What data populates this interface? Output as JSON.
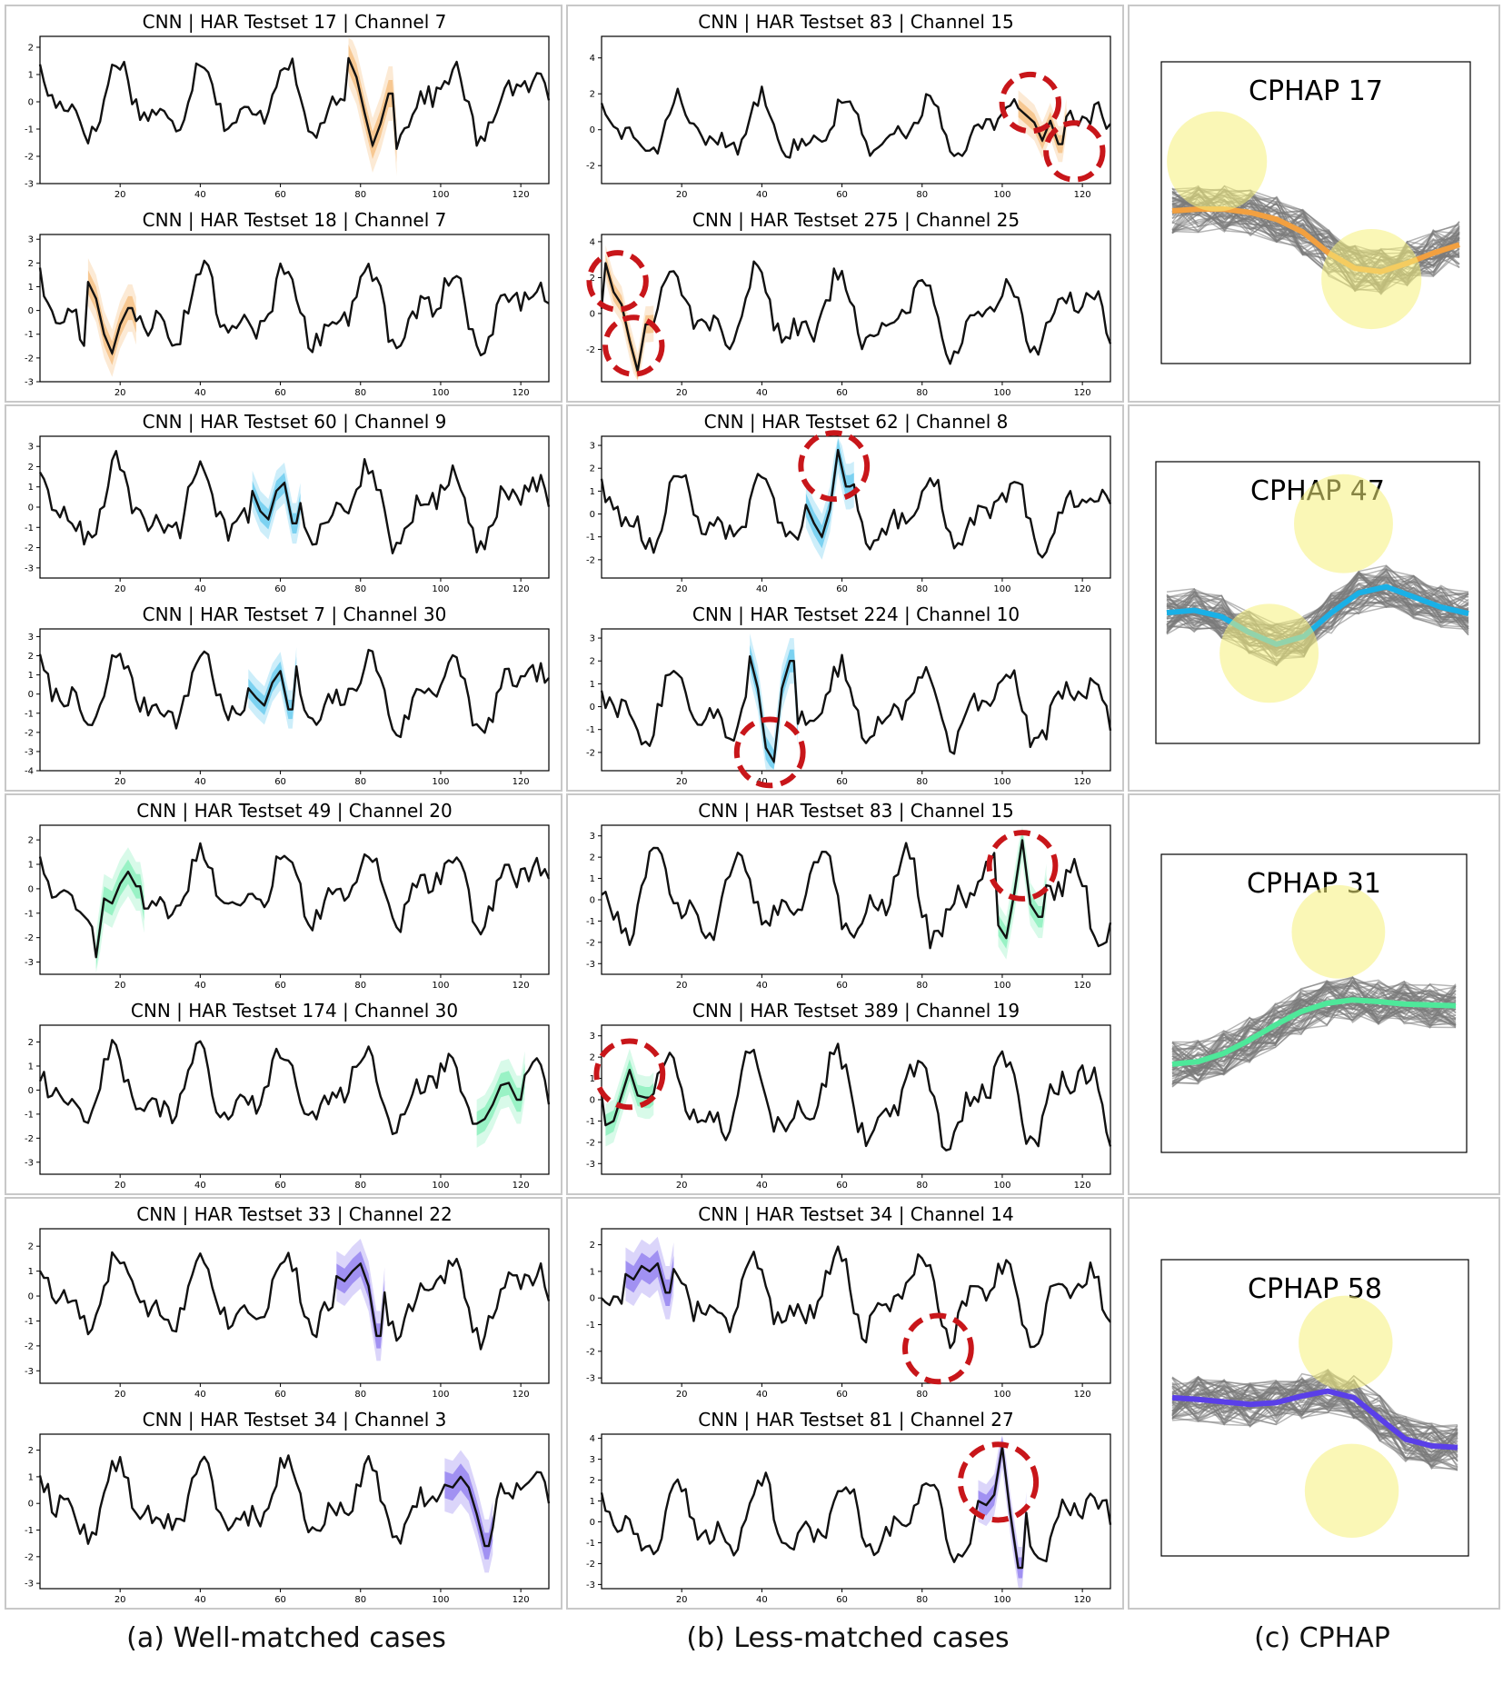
{
  "captions": {
    "a": "(a) Well-matched cases",
    "b": "(b) Less-matched cases",
    "c": "(c) CPHAP"
  },
  "colors": {
    "orange": "#f2a040",
    "cyan": "#1ab0e6",
    "green": "#4ee89a",
    "purple": "#5a3fe8",
    "highlight_circle": "#f5f07a",
    "red_marker": "#c8161a"
  },
  "chart_data": [
    {
      "type": "line",
      "title": "CNN | HAR Testset 17 | Channel 7",
      "column": "a",
      "row": 1,
      "color": "orange",
      "yticks": [
        -3,
        -2,
        -1,
        0,
        1,
        2
      ],
      "xticks": [
        20,
        40,
        60,
        80,
        100,
        120
      ],
      "ylim": [
        -3,
        2.4
      ],
      "xlim": [
        0,
        127
      ],
      "seed": 17,
      "highlight_start": 77,
      "pattern": [
        1.6,
        0.9,
        -0.4,
        -1.6,
        -0.8,
        0.3
      ],
      "markers": []
    },
    {
      "type": "line",
      "title": "CNN | HAR Testset 18 | Channel 7",
      "column": "a",
      "row": 1,
      "color": "orange",
      "yticks": [
        -3,
        -2,
        -1,
        0,
        1,
        2,
        3
      ],
      "xticks": [
        20,
        40,
        60,
        80,
        100,
        120
      ],
      "ylim": [
        -3,
        3.2
      ],
      "xlim": [
        0,
        127
      ],
      "seed": 18,
      "highlight_start": 12,
      "pattern": [
        1.2,
        0.5,
        -1.0,
        -1.8,
        -0.6,
        0.1
      ],
      "markers": []
    },
    {
      "type": "line",
      "title": "CNN | HAR Testset 83 | Channel 15",
      "column": "b",
      "row": 1,
      "color": "orange",
      "yticks": [
        -2,
        0,
        2,
        4
      ],
      "xticks": [
        20,
        40,
        60,
        80,
        100,
        120
      ],
      "ylim": [
        -3,
        5.2
      ],
      "xlim": [
        0,
        127
      ],
      "seed": 83,
      "highlight_start": 104,
      "pattern": [
        1.2,
        0.8,
        0.4,
        -0.6,
        0.5,
        -0.8
      ],
      "markers": [
        [
          107,
          1.5,
          24
        ],
        [
          118,
          -1.2,
          24
        ]
      ]
    },
    {
      "type": "line",
      "title": "CNN | HAR Testset 275 | Channel 25",
      "column": "b",
      "row": 1,
      "color": "orange",
      "yticks": [
        -2,
        0,
        2,
        4
      ],
      "xticks": [
        20,
        40,
        60,
        80,
        100,
        120
      ],
      "ylim": [
        -3.8,
        4.4
      ],
      "xlim": [
        0,
        127
      ],
      "seed": 275,
      "highlight_start": 1,
      "pattern": [
        2.8,
        1.2,
        0.5,
        -1.5,
        -3.2,
        -0.6
      ],
      "markers": [
        [
          4,
          1.8,
          24
        ],
        [
          8,
          -1.8,
          24
        ]
      ]
    },
    {
      "type": "line",
      "title": "CNN | HAR Testset 60 | Channel 9",
      "column": "a",
      "row": 2,
      "color": "cyan",
      "yticks": [
        -3,
        -2,
        -1,
        0,
        1,
        2,
        3
      ],
      "xticks": [
        20,
        40,
        60,
        80,
        100,
        120
      ],
      "ylim": [
        -3.5,
        3.5
      ],
      "xlim": [
        0,
        127
      ],
      "seed": 60,
      "highlight_start": 53,
      "pattern": [
        0.8,
        -0.2,
        -0.6,
        0.8,
        1.2,
        -0.8
      ],
      "markers": []
    },
    {
      "type": "line",
      "title": "CNN | HAR Testset 7 | Channel 30",
      "column": "a",
      "row": 2,
      "color": "cyan",
      "yticks": [
        -4,
        -3,
        -2,
        -1,
        0,
        1,
        2,
        3
      ],
      "xticks": [
        20,
        40,
        60,
        80,
        100,
        120
      ],
      "ylim": [
        -4,
        3.4
      ],
      "xlim": [
        0,
        127
      ],
      "seed": 7,
      "highlight_start": 52,
      "pattern": [
        0.3,
        -0.2,
        -0.6,
        0.6,
        1.2,
        -0.8
      ],
      "markers": []
    },
    {
      "type": "line",
      "title": "CNN | HAR Testset 62 | Channel 8",
      "column": "b",
      "row": 2,
      "color": "cyan",
      "yticks": [
        -2,
        -1,
        0,
        1,
        2,
        3
      ],
      "xticks": [
        20,
        40,
        60,
        80,
        100,
        120
      ],
      "ylim": [
        -2.8,
        3.4
      ],
      "xlim": [
        0,
        127
      ],
      "seed": 62,
      "highlight_start": 51,
      "pattern": [
        0.4,
        -0.4,
        -1.0,
        0.2,
        2.8,
        1.2
      ],
      "markers": [
        [
          58,
          2.1,
          28
        ]
      ]
    },
    {
      "type": "line",
      "title": "CNN | HAR Testset 224 | Channel 10",
      "column": "b",
      "row": 2,
      "color": "cyan",
      "yticks": [
        -2,
        -1,
        0,
        1,
        2,
        3
      ],
      "xticks": [
        20,
        40,
        60,
        80,
        100,
        120
      ],
      "ylim": [
        -2.8,
        3.4
      ],
      "xlim": [
        0,
        127
      ],
      "seed": 224,
      "highlight_start": 37,
      "pattern": [
        2.2,
        0.8,
        -1.8,
        -2.4,
        0.8,
        2.0
      ],
      "markers": [
        [
          42,
          -2.0,
          28
        ]
      ]
    },
    {
      "type": "line",
      "title": "CNN | HAR Testset 49 | Channel 20",
      "column": "a",
      "row": 3,
      "color": "green",
      "yticks": [
        -3,
        -2,
        -1,
        0,
        1,
        2
      ],
      "xticks": [
        20,
        40,
        60,
        80,
        100,
        120
      ],
      "ylim": [
        -3.5,
        2.6
      ],
      "xlim": [
        0,
        127
      ],
      "seed": 49,
      "highlight_start": 14,
      "pattern": [
        -2.8,
        -0.4,
        -0.6,
        0.2,
        0.7,
        0.1
      ],
      "markers": []
    },
    {
      "type": "line",
      "title": "CNN | HAR Testset 174 | Channel 30",
      "column": "a",
      "row": 3,
      "color": "green",
      "yticks": [
        -3,
        -2,
        -1,
        0,
        1,
        2
      ],
      "xticks": [
        20,
        40,
        60,
        80,
        100,
        120
      ],
      "ylim": [
        -3.5,
        2.7
      ],
      "xlim": [
        0,
        127
      ],
      "seed": 174,
      "highlight_start": 109,
      "pattern": [
        -1.4,
        -1.2,
        -0.6,
        0.2,
        0.3,
        -0.4
      ],
      "markers": []
    },
    {
      "type": "line",
      "title": "CNN | HAR Testset 83 | Channel 15",
      "column": "b",
      "row": 3,
      "color": "green",
      "yticks": [
        -3,
        -2,
        -1,
        0,
        1,
        2,
        3
      ],
      "xticks": [
        20,
        40,
        60,
        80,
        100,
        120
      ],
      "ylim": [
        -3.5,
        3.5
      ],
      "xlim": [
        0,
        127
      ],
      "seed": 831,
      "highlight_start": 99,
      "pattern": [
        -1.2,
        -1.8,
        0.3,
        2.8,
        -0.2,
        -0.8
      ],
      "markers": [
        [
          105,
          1.6,
          28
        ]
      ]
    },
    {
      "type": "line",
      "title": "CNN | HAR Testset 389 | Channel 19",
      "column": "b",
      "row": 3,
      "color": "green",
      "yticks": [
        -3,
        -2,
        -1,
        0,
        1,
        2,
        3
      ],
      "xticks": [
        20,
        40,
        60,
        80,
        100,
        120
      ],
      "ylim": [
        -3.5,
        3.5
      ],
      "xlim": [
        0,
        127
      ],
      "seed": 389,
      "highlight_start": 1,
      "pattern": [
        -1.2,
        -1.0,
        0.2,
        1.4,
        0.2,
        0.1
      ],
      "markers": [
        [
          7,
          1.2,
          28
        ]
      ]
    },
    {
      "type": "line",
      "title": "CNN | HAR Testset 33 | Channel 22",
      "column": "a",
      "row": 4,
      "color": "purple",
      "yticks": [
        -3,
        -2,
        -1,
        0,
        1,
        2
      ],
      "xticks": [
        20,
        40,
        60,
        80,
        100,
        120
      ],
      "ylim": [
        -3.5,
        2.7
      ],
      "xlim": [
        0,
        127
      ],
      "seed": 33,
      "highlight_start": 74,
      "pattern": [
        0.8,
        0.6,
        1.0,
        1.3,
        0.4,
        -1.6
      ],
      "markers": []
    },
    {
      "type": "line",
      "title": "CNN | HAR Testset 34 | Channel 3",
      "column": "a",
      "row": 4,
      "color": "purple",
      "yticks": [
        -3,
        -2,
        -1,
        0,
        1,
        2
      ],
      "xticks": [
        20,
        40,
        60,
        80,
        100,
        120
      ],
      "ylim": [
        -3.2,
        2.6
      ],
      "xlim": [
        0,
        127
      ],
      "seed": 34,
      "highlight_start": 101,
      "pattern": [
        0.7,
        0.6,
        1.0,
        0.6,
        -0.4,
        -1.6
      ],
      "markers": []
    },
    {
      "type": "line",
      "title": "CNN | HAR Testset 34 | Channel 14",
      "column": "b",
      "row": 4,
      "color": "purple",
      "yticks": [
        -3,
        -2,
        -1,
        0,
        1,
        2
      ],
      "xticks": [
        20,
        40,
        60,
        80,
        100,
        120
      ],
      "ylim": [
        -3.2,
        2.6
      ],
      "xlim": [
        0,
        127
      ],
      "seed": 341,
      "highlight_start": 6,
      "pattern": [
        0.9,
        0.7,
        1.2,
        1.0,
        1.3,
        0.2
      ],
      "markers": [
        [
          84,
          -1.9,
          28
        ]
      ]
    },
    {
      "type": "line",
      "title": "CNN | HAR Testset 81 | Channel 27",
      "column": "b",
      "row": 4,
      "color": "purple",
      "yticks": [
        -3,
        -2,
        -1,
        0,
        1,
        2,
        3,
        4
      ],
      "xticks": [
        20,
        40,
        60,
        80,
        100,
        120
      ],
      "ylim": [
        -3.2,
        4.2
      ],
      "xlim": [
        0,
        127
      ],
      "seed": 81,
      "highlight_start": 94,
      "pattern": [
        1.0,
        0.8,
        1.3,
        3.6,
        0.4,
        -2.2
      ],
      "markers": [
        [
          99,
          1.9,
          32
        ]
      ]
    }
  ],
  "cphap": [
    {
      "title": "CPHAP 17",
      "color": "orange",
      "seed": 1701,
      "mean": [
        0.2,
        0.22,
        0.22,
        0.18,
        0.1,
        -0.05,
        -0.3,
        -0.48,
        -0.52,
        -0.42,
        -0.3,
        -0.2
      ],
      "circles": [
        [
          0.18,
          0.33,
          0.18
        ],
        [
          0.68,
          0.72,
          0.18
        ]
      ]
    },
    {
      "title": "CPHAP 47",
      "color": "cyan",
      "seed": 4701,
      "mean": [
        0.05,
        0.08,
        0.0,
        -0.2,
        -0.35,
        -0.25,
        0.05,
        0.3,
        0.38,
        0.25,
        0.12,
        0.04
      ],
      "circles": [
        [
          0.35,
          0.68,
          0.17
        ],
        [
          0.58,
          0.22,
          0.17
        ]
      ]
    },
    {
      "title": "CPHAP 31",
      "color": "green",
      "seed": 3101,
      "mean": [
        -0.55,
        -0.52,
        -0.42,
        -0.26,
        -0.08,
        0.08,
        0.18,
        0.22,
        0.2,
        0.17,
        0.16,
        0.15
      ],
      "circles": [
        [
          0.58,
          0.26,
          0.17
        ]
      ]
    },
    {
      "title": "CPHAP 58",
      "color": "purple",
      "seed": 5801,
      "mean": [
        0.3,
        0.28,
        0.25,
        0.22,
        0.24,
        0.32,
        0.38,
        0.3,
        0.05,
        -0.2,
        -0.28,
        -0.3
      ],
      "circles": [
        [
          0.6,
          0.28,
          0.17
        ],
        [
          0.62,
          0.78,
          0.17
        ]
      ]
    }
  ]
}
